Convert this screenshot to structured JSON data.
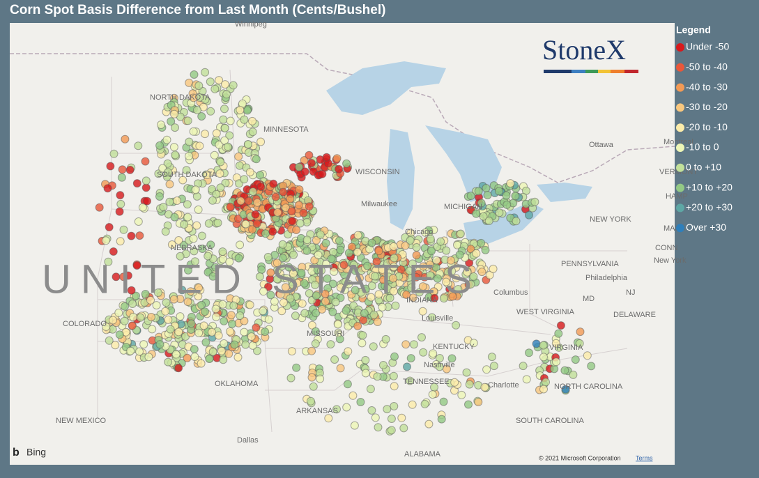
{
  "title": "Corn Spot Basis Difference from Last Month (Cents/Bushel)",
  "logo": "StoneX",
  "legend": {
    "title": "Legend",
    "items": [
      {
        "label": "Under -50",
        "color": "#d7191c"
      },
      {
        "label": "-50 to -40",
        "color": "#e9573a"
      },
      {
        "label": "-40 to -30",
        "color": "#f39a55"
      },
      {
        "label": "-30 to -20",
        "color": "#f9c77e"
      },
      {
        "label": "-20 to -10",
        "color": "#fcecaa"
      },
      {
        "label": "-10 to 0",
        "color": "#eef6b6"
      },
      {
        "label": "0 to +10",
        "color": "#c2e09a"
      },
      {
        "label": "+10 to +20",
        "color": "#93c985"
      },
      {
        "label": "+20 to +30",
        "color": "#5ea7a5"
      },
      {
        "label": "Over +30",
        "color": "#2f7fba"
      }
    ]
  },
  "map": {
    "labels": [
      "Winnipeg",
      "NORTH DAKOTA",
      "MINNESOTA",
      "SOUTH DAKOTA",
      "WISCONSIN",
      "NEBRASKA",
      "UNITED STATES",
      "COLORADO",
      "MISSOURI",
      "OKLAHOMA",
      "ARKANSAS",
      "NEW MEXICO",
      "Dallas",
      "ALABAMA",
      "TENNESSEE",
      "Nashville",
      "KENTUCKY",
      "Louisville",
      "INDIANA",
      "Columbus",
      "WEST VIRGINIA",
      "VIRGINIA",
      "NORTH CAROLINA",
      "SOUTH CAROLINA",
      "Charlotte",
      "PENNSYLVANIA",
      "Philadelphia",
      "NEW YORK",
      "New York",
      "CONN",
      "MASS",
      "VERMONT",
      "HAMP",
      "Ottawa",
      "Montreal",
      "Chicago",
      "MICHIGAN",
      "Milwaukee",
      "MD",
      "DELAWARE",
      "NJ"
    ],
    "provider": "Bing",
    "copyright": "© 2021 Microsoft Corporation",
    "terms": "Terms"
  }
}
